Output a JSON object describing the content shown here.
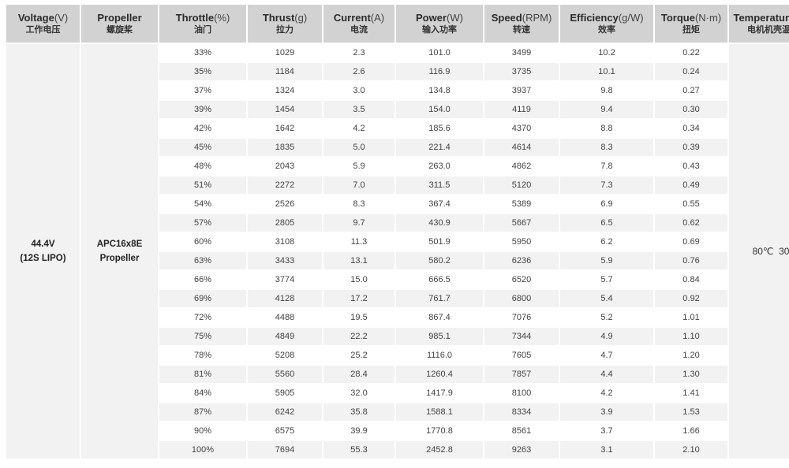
{
  "headers": [
    {
      "en": "Voltage",
      "unit": "(V)",
      "cn": "工作电压"
    },
    {
      "en": "Propeller",
      "unit": "",
      "cn": "螺旋桨"
    },
    {
      "en": "Throttle",
      "unit": "(%)",
      "cn": "油门"
    },
    {
      "en": "Thrust",
      "unit": "(g)",
      "cn": "拉力"
    },
    {
      "en": "Current",
      "unit": "(A)",
      "cn": "电流"
    },
    {
      "en": "Power",
      "unit": "(W)",
      "cn": "输入功率"
    },
    {
      "en": "Speed",
      "unit": "(RPM)",
      "cn": "转速"
    },
    {
      "en": "Efficiency",
      "unit": "(g/W)",
      "cn": "效率"
    },
    {
      "en": "Torque",
      "unit": "(N·m)",
      "cn": "扭矩"
    },
    {
      "en": "Temperature",
      "unit": "(℃)",
      "cn": "电机机壳温度"
    }
  ],
  "voltage": {
    "line1": "44.4V",
    "line2": "(12S LIPO)"
  },
  "propeller": {
    "line1": "APC16x8E",
    "line2": "Propeller"
  },
  "temperature": "80℃  30s",
  "rows": [
    [
      "33%",
      "1029",
      "2.3",
      "101.0",
      "3499",
      "10.2",
      "0.22"
    ],
    [
      "35%",
      "1184",
      "2.6",
      "116.9",
      "3735",
      "10.1",
      "0.24"
    ],
    [
      "37%",
      "1324",
      "3.0",
      "134.8",
      "3937",
      "9.8",
      "0.27"
    ],
    [
      "39%",
      "1454",
      "3.5",
      "154.0",
      "4119",
      "9.4",
      "0.30"
    ],
    [
      "42%",
      "1642",
      "4.2",
      "185.6",
      "4370",
      "8.8",
      "0.34"
    ],
    [
      "45%",
      "1835",
      "5.0",
      "221.4",
      "4614",
      "8.3",
      "0.39"
    ],
    [
      "48%",
      "2043",
      "5.9",
      "263.0",
      "4862",
      "7.8",
      "0.43"
    ],
    [
      "51%",
      "2272",
      "7.0",
      "311.5",
      "5120",
      "7.3",
      "0.49"
    ],
    [
      "54%",
      "2526",
      "8.3",
      "367.4",
      "5389",
      "6.9",
      "0.55"
    ],
    [
      "57%",
      "2805",
      "9.7",
      "430.9",
      "5667",
      "6.5",
      "0.62"
    ],
    [
      "60%",
      "3108",
      "11.3",
      "501.9",
      "5950",
      "6.2",
      "0.69"
    ],
    [
      "63%",
      "3433",
      "13.1",
      "580.2",
      "6236",
      "5.9",
      "0.76"
    ],
    [
      "66%",
      "3774",
      "15.0",
      "666.5",
      "6520",
      "5.7",
      "0.84"
    ],
    [
      "69%",
      "4128",
      "17.2",
      "761.7",
      "6800",
      "5.4",
      "0.92"
    ],
    [
      "72%",
      "4488",
      "19.5",
      "867.4",
      "7076",
      "5.2",
      "1.01"
    ],
    [
      "75%",
      "4849",
      "22.2",
      "985.1",
      "7344",
      "4.9",
      "1.10"
    ],
    [
      "78%",
      "5208",
      "25.2",
      "1116.0",
      "7605",
      "4.7",
      "1.20"
    ],
    [
      "81%",
      "5560",
      "28.4",
      "1260.4",
      "7857",
      "4.4",
      "1.30"
    ],
    [
      "84%",
      "5905",
      "32.0",
      "1417.9",
      "8100",
      "4.2",
      "1.41"
    ],
    [
      "87%",
      "6242",
      "35.8",
      "1588.1",
      "8334",
      "3.9",
      "1.53"
    ],
    [
      "90%",
      "6575",
      "39.9",
      "1770.8",
      "8561",
      "3.7",
      "1.66"
    ],
    [
      "100%",
      "7694",
      "55.3",
      "2452.8",
      "9263",
      "3.1",
      "2.10"
    ]
  ]
}
